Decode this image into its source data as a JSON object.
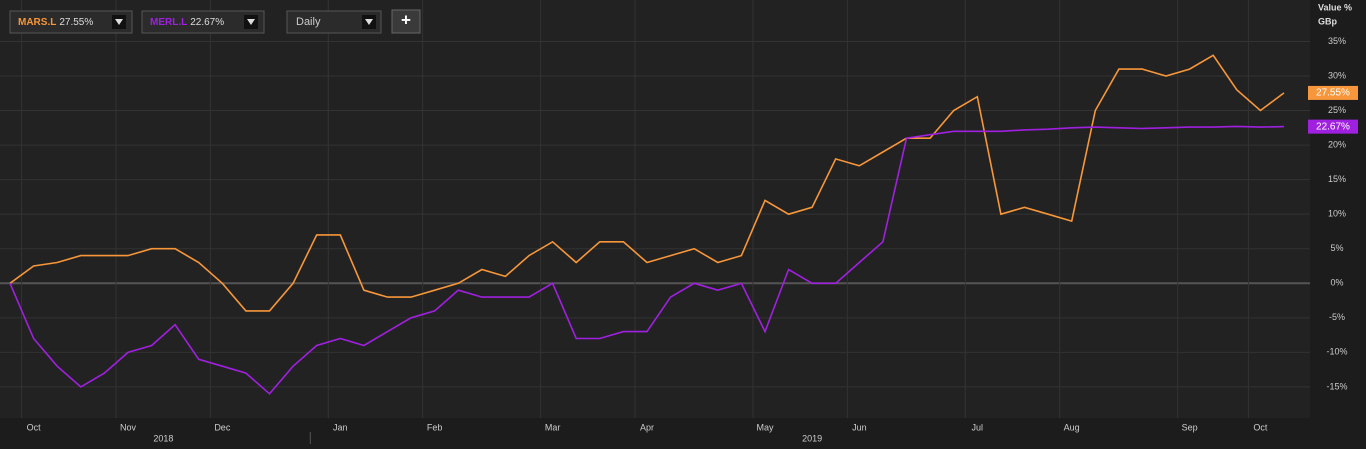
{
  "ui": {
    "interval": "Daily",
    "add_button": "+"
  },
  "chart_data": {
    "type": "line",
    "y_axis_title": "Value %",
    "y_unit": "GBp",
    "categories": [
      null,
      "Oct",
      null,
      null,
      null,
      "Nov",
      null,
      null,
      null,
      "Dec",
      null,
      null,
      null,
      null,
      "Jan",
      null,
      null,
      null,
      "Feb",
      null,
      null,
      null,
      null,
      "Mar",
      null,
      null,
      null,
      "Apr",
      null,
      null,
      null,
      null,
      "May",
      null,
      null,
      null,
      "Jun",
      null,
      null,
      null,
      null,
      "Jul",
      null,
      null,
      null,
      "Aug",
      null,
      null,
      null,
      null,
      "Sep",
      null,
      null,
      "Oct",
      null
    ],
    "x_groups": [
      {
        "label": "2018",
        "start": 0,
        "end": 13
      },
      {
        "label": "2019",
        "start": 14,
        "end": 54
      }
    ],
    "series": [
      {
        "name": "MARS.L",
        "end_label": "27.55%",
        "color": "#f7963a",
        "values": [
          0,
          2.5,
          3,
          4,
          4,
          4,
          5,
          5,
          3,
          0,
          -4,
          -4,
          0,
          7,
          7,
          -1,
          -2,
          -2,
          -1,
          0,
          2,
          1,
          4,
          6,
          3,
          6,
          6,
          3,
          4,
          5,
          3,
          4,
          12,
          10,
          11,
          18,
          17,
          19,
          21,
          21,
          25,
          27,
          10,
          11,
          10,
          9,
          25,
          31,
          31,
          30,
          31,
          33,
          28,
          25,
          27.55
        ]
      },
      {
        "name": "MERL.L",
        "end_label": "22.67%",
        "color": "#a020e0",
        "values": [
          0,
          -8,
          -12,
          -15,
          -13,
          -10,
          -9,
          -6,
          -11,
          -12,
          -13,
          -16,
          -12,
          -9,
          -8,
          -9,
          -7,
          -5,
          -4,
          -1,
          -2,
          -2,
          -2,
          0,
          -8,
          -8,
          -7,
          -7,
          -2,
          0,
          -1,
          0,
          -7,
          2,
          0,
          0,
          3,
          6,
          21,
          21.5,
          22,
          22,
          22,
          22.2,
          22.3,
          22.5,
          22.6,
          22.5,
          22.4,
          22.5,
          22.6,
          22.6,
          22.7,
          22.6,
          22.67
        ]
      }
    ],
    "ylim": [
      -19.5,
      41
    ],
    "yticks": [
      {
        "value": -15,
        "label": "-15%"
      },
      {
        "value": -10,
        "label": "-10%"
      },
      {
        "value": -5,
        "label": "-5%"
      },
      {
        "value": 0,
        "label": "0%"
      },
      {
        "value": 5,
        "label": "5%"
      },
      {
        "value": 10,
        "label": "10%"
      },
      {
        "value": 15,
        "label": "15%"
      },
      {
        "value": 20,
        "label": "20%"
      },
      {
        "value": 25,
        "label": "25%"
      },
      {
        "value": 30,
        "label": "30%"
      },
      {
        "value": 35,
        "label": "35%"
      }
    ],
    "grid": true
  }
}
